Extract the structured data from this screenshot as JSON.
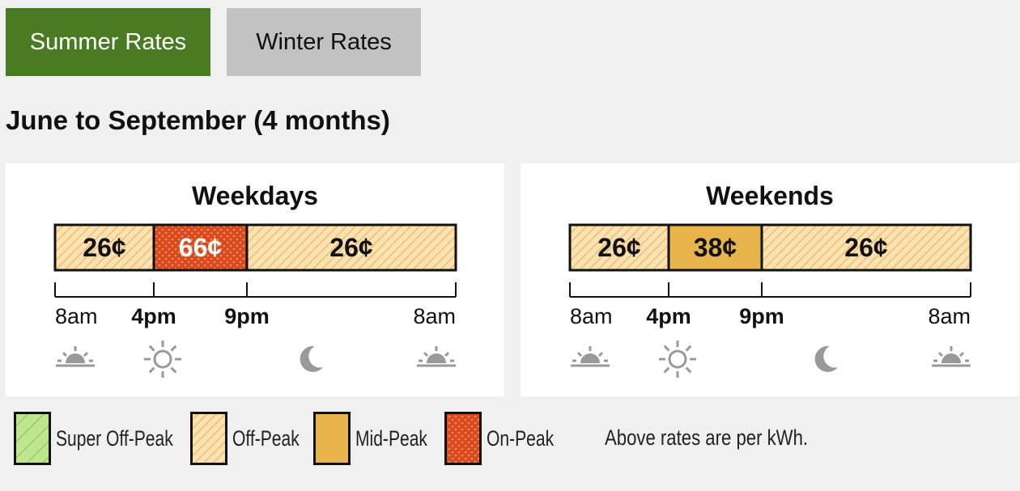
{
  "tabs": [
    {
      "label": "Summer Rates",
      "active": true
    },
    {
      "label": "Winter Rates",
      "active": false
    }
  ],
  "heading": "June to September (4 months)",
  "panels": [
    {
      "title": "Weekdays",
      "segments": [
        {
          "rate": "26¢",
          "type": "off-peak"
        },
        {
          "rate": "66¢",
          "type": "on-peak"
        },
        {
          "rate": "26¢",
          "type": "off-peak"
        }
      ],
      "times": [
        "8am",
        "4pm",
        "9pm",
        "8am"
      ]
    },
    {
      "title": "Weekends",
      "segments": [
        {
          "rate": "26¢",
          "type": "off-peak"
        },
        {
          "rate": "38¢",
          "type": "mid-peak"
        },
        {
          "rate": "26¢",
          "type": "off-peak"
        }
      ],
      "times": [
        "8am",
        "4pm",
        "9pm",
        "8am"
      ]
    }
  ],
  "legend": [
    {
      "label": "Super Off-Peak",
      "type": "super-off-peak"
    },
    {
      "label": "Off-Peak",
      "type": "off-peak"
    },
    {
      "label": "Mid-Peak",
      "type": "mid-peak"
    },
    {
      "label": "On-Peak",
      "type": "on-peak"
    }
  ],
  "note": "Above rates are per kWh."
}
